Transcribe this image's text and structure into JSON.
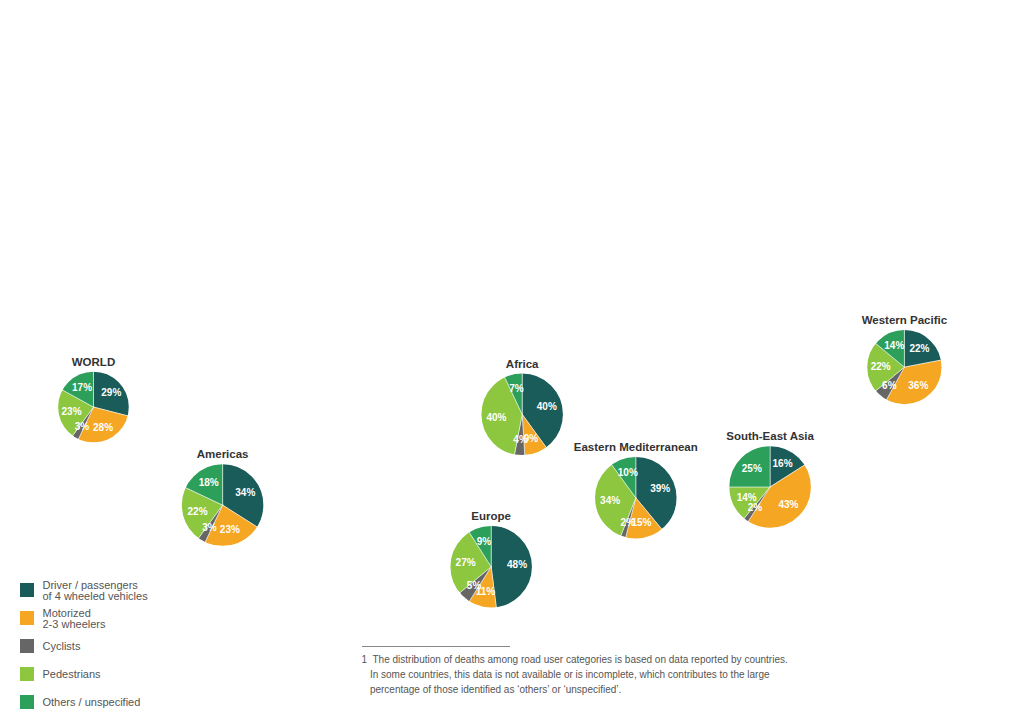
{
  "chart_data": {
    "type": "pie",
    "categories": [
      "Driver / passengers\nof 4 wheeled vehicles",
      "Motorized\n2-3 wheelers",
      "Cyclists",
      "Pedestrians",
      "Others / unspecified"
    ],
    "colors": [
      "#1a5c5a",
      "#f5a623",
      "#666666",
      "#8dc63f",
      "#2ca05a"
    ],
    "series": [
      {
        "name": "WORLD",
        "values": [
          29,
          28,
          3,
          23,
          17
        ],
        "value_labels": [
          "29%",
          "28%",
          "3%",
          "23%",
          "17%"
        ]
      },
      {
        "name": "Americas",
        "values": [
          34,
          23,
          3,
          22,
          18
        ],
        "value_labels": [
          "34%",
          "23%",
          "3%",
          "22%",
          "18%"
        ]
      },
      {
        "name": "Europe",
        "values": [
          48,
          11,
          5,
          27,
          9
        ],
        "value_labels": [
          "48%",
          "11%",
          "5%",
          "27%",
          "9%"
        ]
      },
      {
        "name": "Eastern Mediterranean",
        "values": [
          39,
          15,
          2,
          34,
          10
        ],
        "value_labels": [
          "39%",
          "15%",
          "2%",
          "34%",
          "10%"
        ]
      },
      {
        "name": "Africa",
        "values": [
          40,
          9,
          4,
          40,
          7
        ],
        "value_labels": [
          "40%",
          "9%",
          "4%",
          "40%",
          "7%"
        ]
      },
      {
        "name": "South-East Asia",
        "values": [
          16,
          43,
          2,
          14,
          25
        ],
        "value_labels": [
          "16%",
          "43%",
          "2%",
          "14%",
          "25%"
        ]
      },
      {
        "name": "Western Pacific",
        "values": [
          22,
          36,
          6,
          22,
          14
        ],
        "value_labels": [
          "22%",
          "36%",
          "6%",
          "22%",
          "14%"
        ]
      }
    ],
    "data_labels": true,
    "legend": "lower left",
    "annotations": [
      "1  The distribution of deaths among road user categories is based on data reported by countries.\n   In some countries, this data is not available or is incomplete, which contributes to the large\n   percentage of those identified as ‘others’ or ‘unspecified’."
    ]
  }
}
